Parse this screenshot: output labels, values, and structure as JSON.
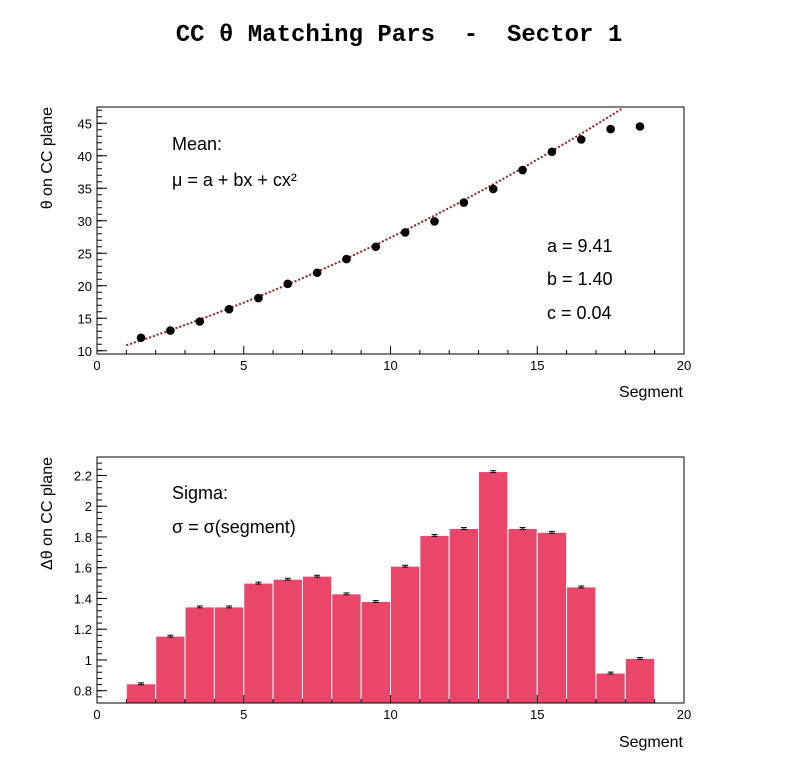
{
  "page": {
    "title": "CC θ Matching Pars  -  Sector 1"
  },
  "colors": {
    "fit": "#a01c1c",
    "marker": "#000000",
    "bar_fill": "#e9466a",
    "bar_edge": "#ffffff"
  },
  "chart_data": [
    {
      "type": "scatter",
      "xlabel": "Segment",
      "ylabel": "θ on CC plane",
      "xlim": [
        0,
        20
      ],
      "ylim": [
        9.5,
        47.5
      ],
      "x_ticks": [
        0,
        5,
        10,
        15,
        20
      ],
      "y_ticks": [
        10,
        15,
        20,
        25,
        30,
        35,
        40,
        45
      ],
      "grid": false,
      "annotations": {
        "title": "Mean:",
        "formula": "μ = a + bx + cx²",
        "params": [
          "a = 9.41",
          "b = 1.40",
          "c = 0.04"
        ]
      },
      "fit": {
        "a": 9.41,
        "b": 1.4,
        "c": 0.04,
        "x_range": [
          1.0,
          19.0
        ],
        "style": "dotted"
      },
      "x": [
        1.5,
        2.5,
        3.5,
        4.5,
        5.5,
        6.5,
        7.5,
        8.5,
        9.5,
        10.5,
        11.5,
        12.5,
        13.5,
        14.5,
        15.5,
        16.5,
        17.5,
        18.5
      ],
      "y": [
        12.0,
        13.1,
        14.5,
        16.4,
        18.1,
        20.3,
        22.0,
        24.1,
        26.0,
        28.2,
        29.9,
        32.8,
        34.9,
        37.8,
        40.6,
        42.5,
        44.1,
        44.5
      ]
    },
    {
      "type": "bar",
      "xlabel": "Segment",
      "ylabel": "Δθ on CC plane",
      "xlim": [
        0,
        20
      ],
      "ylim": [
        0.72,
        2.32
      ],
      "x_ticks": [
        0,
        5,
        10,
        15,
        20
      ],
      "y_ticks": [
        0.8,
        1,
        1.2,
        1.4,
        1.6,
        1.8,
        2,
        2.2
      ],
      "y_tick_labels": [
        "0.8",
        "1",
        "1.2",
        "1.4",
        "1.6",
        "1.8",
        "2",
        "2.2"
      ],
      "grid": false,
      "annotations": {
        "title": "Sigma:",
        "formula": "σ = σ(segment)"
      },
      "bin_edges": [
        1,
        2,
        3,
        4,
        5,
        6,
        7,
        8,
        9,
        10,
        11,
        12,
        13,
        14,
        15,
        16,
        17,
        18,
        19
      ],
      "values": [
        0.845,
        1.155,
        1.345,
        1.345,
        1.5,
        1.525,
        1.545,
        1.43,
        1.38,
        1.61,
        1.81,
        1.855,
        2.225,
        1.855,
        1.83,
        1.475,
        0.915,
        1.01
      ],
      "error": 0.006
    }
  ]
}
